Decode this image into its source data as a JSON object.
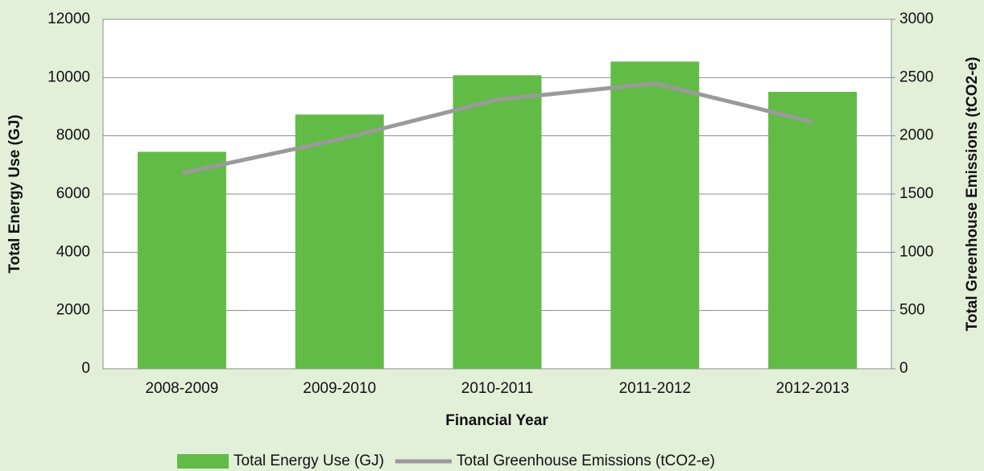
{
  "chart_data": {
    "type": "bar_line",
    "categories": [
      "2008-2009",
      "2009-2010",
      "2010-2011",
      "2011-2012",
      "2012-2013"
    ],
    "series": [
      {
        "name": "Total Energy Use (GJ)",
        "type": "bar",
        "color": "#62bb46",
        "values": [
          7450,
          8730,
          10080,
          10550,
          9510
        ]
      },
      {
        "name": "Total Greenhouse Emissions (tCO2-e)",
        "type": "line",
        "axis": "y2",
        "color": "#9a9a9a",
        "values": [
          1680,
          1970,
          2310,
          2450,
          2120
        ]
      }
    ],
    "xlabel": "Financial Year",
    "ylabel": "Total Energy Use (GJ)",
    "y2label": "Total Greenhouse Emissions (tCO2-e)",
    "ylim": [
      0,
      12000
    ],
    "yticks": [
      0,
      2000,
      4000,
      6000,
      8000,
      10000,
      12000
    ],
    "y2lim": [
      0,
      3000
    ],
    "y2ticks": [
      0,
      500,
      1000,
      1500,
      2000,
      2500,
      3000
    ],
    "grid": true,
    "legend": "bottom"
  }
}
